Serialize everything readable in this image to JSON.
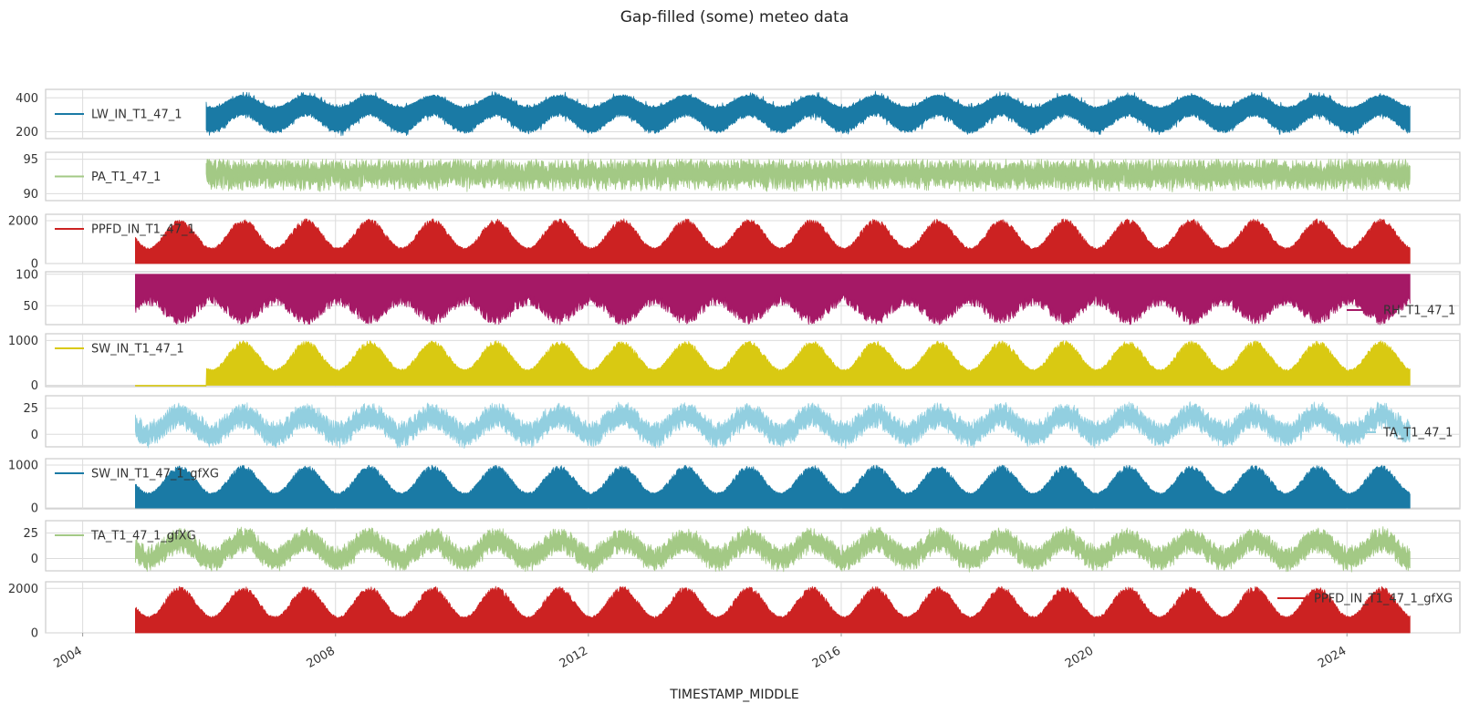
{
  "figure": {
    "title": "Gap-filled (some) meteo data",
    "xlabel": "TIMESTAMP_MIDDLE"
  },
  "chart_data": {
    "type": "line",
    "title": "Gap-filled (some) meteo data",
    "xlabel": "TIMESTAMP_MIDDLE",
    "xlim": [
      "2003-06-01",
      "2025-10-15"
    ],
    "x_ticks": [
      "2004",
      "2008",
      "2012",
      "2016",
      "2020",
      "2024"
    ],
    "grid": true,
    "sharex": true,
    "panels": [
      {
        "series": "LW_IN_T1_47_1",
        "color": "#1a7aa5",
        "legend_loc": "center-left",
        "ylim": [
          160,
          450
        ],
        "yticks": [
          200,
          400
        ],
        "start": "2005-12-15",
        "end": "2024-12-31",
        "seasonal": {
          "summer_max": 420,
          "summer_min": 290,
          "winter_max": 350,
          "winter_min": 190
        }
      },
      {
        "series": "PA_T1_47_1",
        "color": "#a3c985",
        "legend_loc": "center-left",
        "ylim": [
          89,
          96
        ],
        "yticks": [
          90,
          95
        ],
        "start": "2005-12-15",
        "end": "2024-12-31",
        "range": {
          "min": 90.0,
          "max": 95.0,
          "typical_low": 92.0,
          "typical_high": 94.0
        }
      },
      {
        "series": "PPFD_IN_T1_47_1",
        "color": "#cc2222",
        "legend_loc": "upper-left",
        "ylim": [
          0,
          2300
        ],
        "yticks": [
          0,
          2000
        ],
        "start": "2004-11-01",
        "end": "2024-12-31",
        "seasonal": {
          "summer_peak": 2100,
          "winter_peak": 750
        }
      },
      {
        "series": "RH_T1_47_1",
        "color": "#a51966",
        "legend_loc": "lower-right",
        "ylim": [
          20,
          104
        ],
        "yticks": [
          50,
          100
        ],
        "start": "2004-11-01",
        "end": "2024-12-31",
        "range": {
          "max": 100,
          "summer_min": 25,
          "winter_min": 55
        }
      },
      {
        "series": "SW_IN_T1_47_1",
        "color": "#d9c912",
        "legend_loc": "upper-left",
        "ylim": [
          -30,
          1150
        ],
        "yticks": [
          0,
          1000
        ],
        "start": "2004-11-01",
        "data_start": "2005-12-15",
        "end": "2024-12-31",
        "seasonal": {
          "summer_peak": 1000,
          "winter_peak": 360
        }
      },
      {
        "series": "TA_T1_47_1",
        "color": "#92cfe0",
        "legend_loc": "lower-right",
        "ylim": [
          -12,
          37
        ],
        "yticks": [
          0,
          25
        ],
        "start": "2004-11-01",
        "end": "2024-12-31",
        "seasonal": {
          "summer_mid": 18,
          "winter_mid": 0,
          "spread": 9
        }
      },
      {
        "series": "SW_IN_T1_47_1_gfXG",
        "color": "#1a7aa5",
        "legend_loc": "upper-left",
        "ylim": [
          -20,
          1150
        ],
        "yticks": [
          0,
          1000
        ],
        "start": "2004-11-01",
        "end": "2024-12-31",
        "seasonal": {
          "summer_peak": 1000,
          "winter_peak": 360
        }
      },
      {
        "series": "TA_T1_47_1_gfXG",
        "color": "#a3c985",
        "legend_loc": "upper-left",
        "ylim": [
          -12,
          37
        ],
        "yticks": [
          0,
          25
        ],
        "start": "2004-11-01",
        "end": "2024-12-31",
        "seasonal": {
          "summer_mid": 18,
          "winter_mid": 0,
          "spread": 9
        }
      },
      {
        "series": "PPFD_IN_T1_47_1_gfXG",
        "color": "#cc2222",
        "legend_loc": "upper-right",
        "ylim": [
          0,
          2300
        ],
        "yticks": [
          0,
          2000
        ],
        "start": "2004-11-01",
        "end": "2024-12-31",
        "seasonal": {
          "summer_peak": 2100,
          "winter_peak": 750
        }
      }
    ]
  }
}
